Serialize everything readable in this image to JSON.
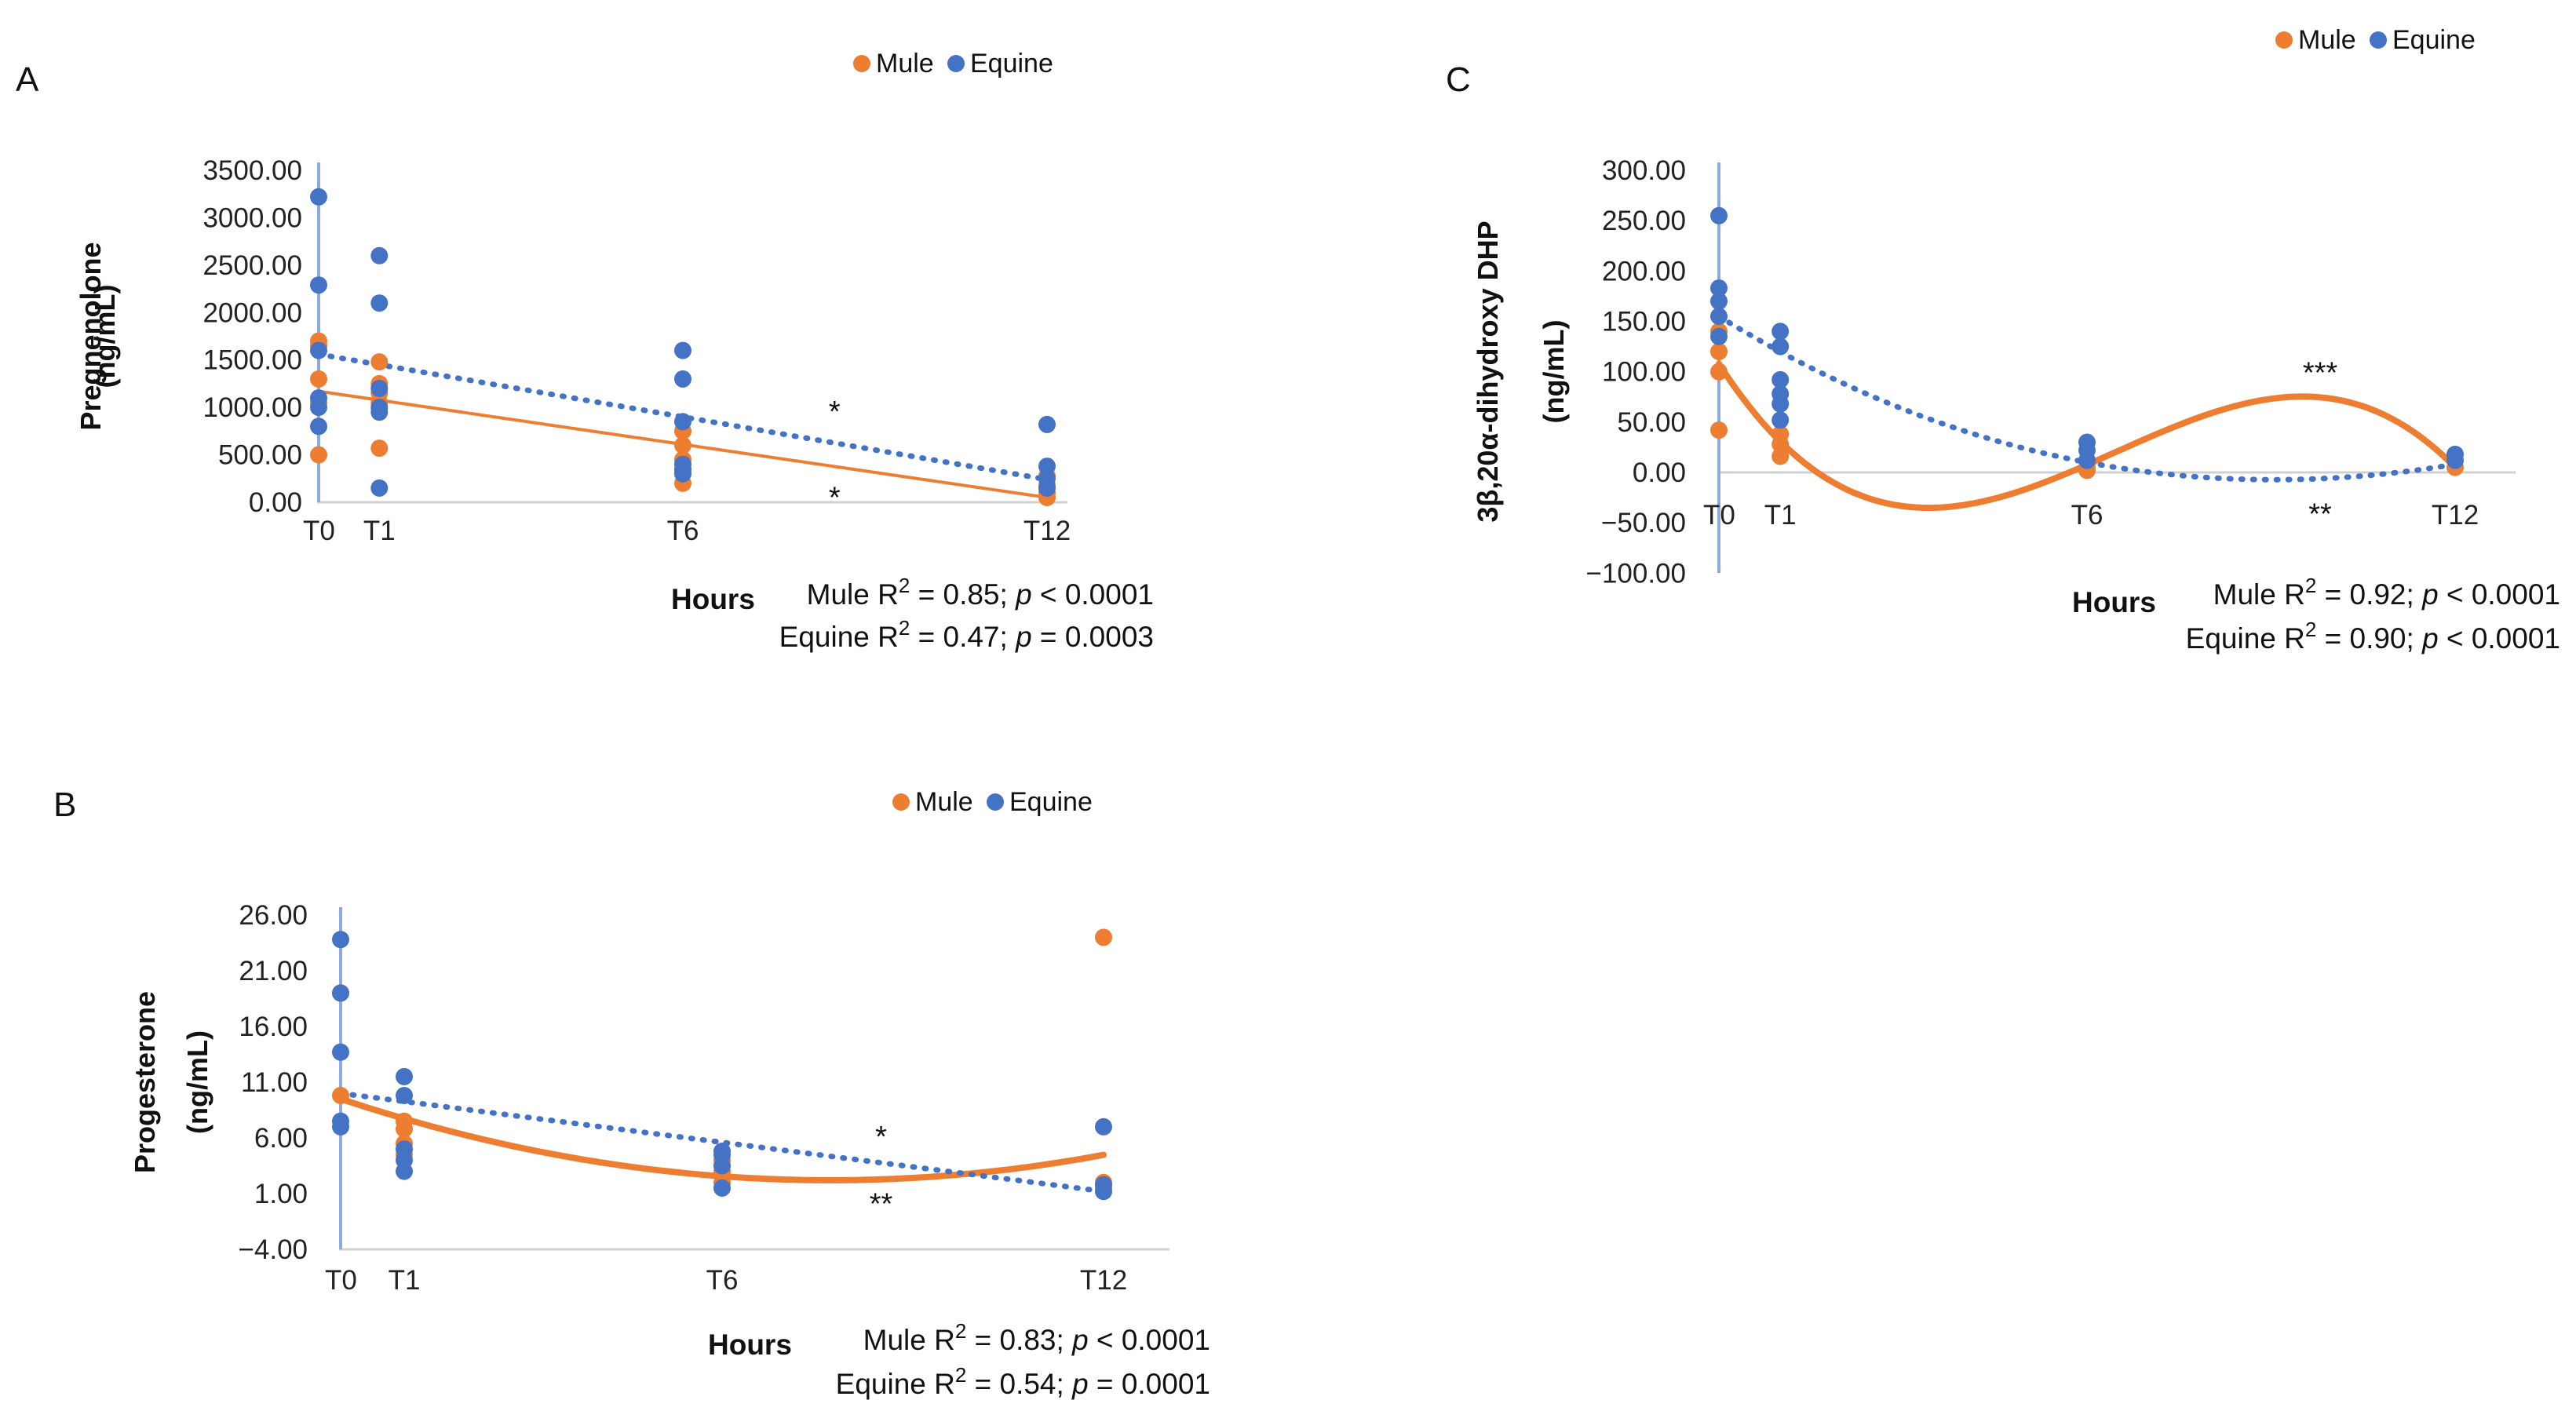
{
  "chart_data": [
    {
      "panel": "A",
      "type": "scatter",
      "ylabel_line1": "Pregnenolone",
      "ylabel_line2": "(ng/mL)",
      "xlabel": "Hours",
      "categories": [
        "T0",
        "T1",
        "T6",
        "T12"
      ],
      "x_hours": [
        0,
        1,
        6,
        12
      ],
      "y_ticks": [
        "3500.00",
        "3000.00",
        "2500.00",
        "2000.00",
        "1500.00",
        "1000.00",
        "500.00",
        "0.00"
      ],
      "ylim": [
        0,
        3500
      ],
      "legend": [
        "Mule",
        "Equine"
      ],
      "series": [
        {
          "name": "Mule",
          "color": "#ED7D31",
          "points": [
            [
              0,
              1700
            ],
            [
              0,
              1650
            ],
            [
              0,
              1300
            ],
            [
              0,
              1050
            ],
            [
              0,
              500
            ],
            [
              1,
              1480
            ],
            [
              1,
              1250
            ],
            [
              1,
              1150
            ],
            [
              1,
              1050
            ],
            [
              1,
              570
            ],
            [
              6,
              750
            ],
            [
              6,
              600
            ],
            [
              6,
              450
            ],
            [
              6,
              330
            ],
            [
              6,
              200
            ],
            [
              12,
              280
            ],
            [
              12,
              180
            ],
            [
              12,
              100
            ],
            [
              12,
              50
            ]
          ],
          "fit": {
            "kind": "linear",
            "at_x0": 1170,
            "at_x12": 50
          }
        },
        {
          "name": "Equine",
          "color": "#4472C4",
          "points": [
            [
              0,
              3220
            ],
            [
              0,
              2290
            ],
            [
              0,
              1600
            ],
            [
              0,
              1100
            ],
            [
              0,
              1000
            ],
            [
              0,
              800
            ],
            [
              1,
              2600
            ],
            [
              1,
              2100
            ],
            [
              1,
              1200
            ],
            [
              1,
              1000
            ],
            [
              1,
              950
            ],
            [
              1,
              150
            ],
            [
              6,
              1600
            ],
            [
              6,
              1300
            ],
            [
              6,
              850
            ],
            [
              6,
              400
            ],
            [
              6,
              350
            ],
            [
              6,
              300
            ],
            [
              12,
              820
            ],
            [
              12,
              380
            ],
            [
              12,
              250
            ],
            [
              12,
              150
            ]
          ],
          "fit": {
            "kind": "linear",
            "at_x0": 1560,
            "at_x12": 240
          }
        }
      ],
      "annotations": [
        {
          "text": "*",
          "x": 8.5,
          "y": 970
        },
        {
          "text": "*",
          "x": 8.5,
          "y": 60
        }
      ],
      "stats_line1_prefix": "Mule R",
      "stats_line1_suffix": " = 0.85; ",
      "stats_line1_tail": " < 0.0001",
      "stats_line2_prefix": "Equine R",
      "stats_line2_suffix": " = 0.47; ",
      "stats_line2_tail": " = 0.0003"
    },
    {
      "panel": "B",
      "type": "scatter",
      "ylabel_line1": "Progesterone",
      "ylabel_line2": "(ng/mL)",
      "xlabel": "Hours",
      "categories": [
        "T0",
        "T1",
        "T6",
        "T12"
      ],
      "x_hours": [
        0,
        1,
        6,
        12
      ],
      "y_ticks": [
        "26.00",
        "21.00",
        "16.00",
        "11.00",
        "6.00",
        "1.00",
        "−4.00"
      ],
      "ylim": [
        -4,
        26
      ],
      "legend": [
        "Mule",
        "Equine"
      ],
      "series": [
        {
          "name": "Mule",
          "color": "#ED7D31",
          "points": [
            [
              0,
              19
            ],
            [
              0,
              9.8
            ],
            [
              1,
              7.5
            ],
            [
              1,
              6.8
            ],
            [
              1,
              5.5
            ],
            [
              1,
              4.5
            ],
            [
              6,
              4
            ],
            [
              6,
              3
            ],
            [
              6,
              2
            ],
            [
              12,
              24
            ],
            [
              12,
              2
            ],
            [
              12,
              1.5
            ]
          ],
          "fit": {
            "kind": "poly2",
            "y0": 9.5,
            "ymin": 2.2,
            "xmin": 7.7,
            "y12": 5.3
          }
        },
        {
          "name": "Equine",
          "color": "#4472C4",
          "points": [
            [
              0,
              23.8
            ],
            [
              0,
              19
            ],
            [
              0,
              13.7
            ],
            [
              0,
              7.5
            ],
            [
              0,
              7
            ],
            [
              1,
              11.5
            ],
            [
              1,
              9.8
            ],
            [
              1,
              5
            ],
            [
              1,
              4
            ],
            [
              1,
              3
            ],
            [
              6,
              4.8
            ],
            [
              6,
              4.5
            ],
            [
              6,
              3.5
            ],
            [
              6,
              1.5
            ],
            [
              12,
              7
            ],
            [
              12,
              1.8
            ],
            [
              12,
              1.2
            ]
          ],
          "fit": {
            "kind": "linear",
            "at_x0": 10,
            "at_x12": 1.2
          }
        }
      ],
      "annotations": [
        {
          "text": "*",
          "x": 8.5,
          "y": 6.2
        },
        {
          "text": "**",
          "x": 8.5,
          "y": 0.2
        }
      ],
      "stats_line1_prefix": "Mule R",
      "stats_line1_suffix": " = 0.83; ",
      "stats_line1_tail": " < 0.0001",
      "stats_line2_prefix": "Equine R",
      "stats_line2_suffix": " = 0.54; ",
      "stats_line2_tail": " = 0.0001"
    },
    {
      "panel": "C",
      "type": "scatter",
      "ylabel_line1": "3β,20α-dihydroxy DHP",
      "ylabel_line2": "(ng/mL)",
      "xlabel": "Hours",
      "categories": [
        "T0",
        "T1",
        "T6",
        "T12"
      ],
      "x_hours": [
        0,
        1,
        6,
        12
      ],
      "y_ticks": [
        "300.00",
        "250.00",
        "200.00",
        "150.00",
        "100.00",
        "50.00",
        "0.00",
        "−50.00",
        "−100.00"
      ],
      "ylim": [
        -100,
        300
      ],
      "legend": [
        "Mule",
        "Equine"
      ],
      "series": [
        {
          "name": "Mule",
          "color": "#ED7D31",
          "points": [
            [
              0,
              140
            ],
            [
              0,
              120
            ],
            [
              0,
              100
            ],
            [
              0,
              42
            ],
            [
              1,
              38
            ],
            [
              1,
              28
            ],
            [
              1,
              16
            ],
            [
              6,
              5
            ],
            [
              6,
              2
            ],
            [
              12,
              5
            ]
          ],
          "fit": {
            "kind": "poly3",
            "y0": 108,
            "localmin": [
              3.3,
              -35
            ],
            "localmax": [
              9.7,
              75
            ],
            "y12": 5
          }
        },
        {
          "name": "Equine",
          "color": "#4472C4",
          "points": [
            [
              0,
              255
            ],
            [
              0,
              183
            ],
            [
              0,
              170
            ],
            [
              0,
              155
            ],
            [
              0,
              135
            ],
            [
              1,
              140
            ],
            [
              1,
              125
            ],
            [
              1,
              92
            ],
            [
              1,
              78
            ],
            [
              1,
              68
            ],
            [
              1,
              52
            ],
            [
              6,
              30
            ],
            [
              6,
              22
            ],
            [
              6,
              12
            ],
            [
              12,
              18
            ],
            [
              12,
              12
            ]
          ],
          "fit": {
            "kind": "poly3",
            "y0": 155,
            "y6": 10,
            "minimum": [
              9.4,
              -7
            ],
            "y12": 8
          }
        }
      ],
      "annotations": [
        {
          "text": "***",
          "x": 9.8,
          "y": 100
        },
        {
          "text": "**",
          "x": 9.8,
          "y": -40
        }
      ],
      "stats_line1_prefix": "Mule R",
      "stats_line1_suffix": " = 0.92; ",
      "stats_line1_tail": " < 0.0001",
      "stats_line2_prefix": "Equine R",
      "stats_line2_suffix": " = 0.90; ",
      "stats_line2_tail": " < 0.0001"
    }
  ],
  "superscript": "2",
  "p_symbol": "p",
  "colors": {
    "mule": "#ED7D31",
    "equine": "#4472C4",
    "axis": "#8EA9DB"
  }
}
